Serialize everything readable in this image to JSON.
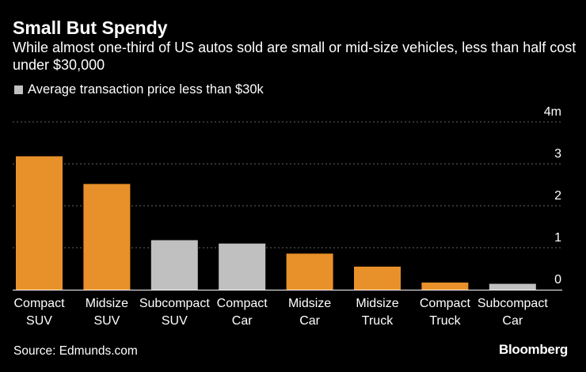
{
  "header": {
    "title": "Small But Spendy",
    "subtitle": "While almost one-third of US autos sold are small or mid-size vehicles, less than half cost under $30,000"
  },
  "legend": {
    "label": "Average transaction price less than $30k",
    "color": "#c0c0c0"
  },
  "footer": {
    "source": "Source: Edmunds.com",
    "brand": "Bloomberg"
  },
  "colors": {
    "over_30k": "#e8912a",
    "under_30k": "#c0c0c0",
    "grid": "#666666",
    "axis": "#ffffff",
    "text": "#ffffff",
    "background": "#000000"
  },
  "chart_data": {
    "type": "bar",
    "title": "Small But Spendy",
    "ylabel": "",
    "xlabel": "",
    "ylim": [
      0,
      4
    ],
    "yticks": [
      0,
      1,
      2,
      3,
      4
    ],
    "ytick_labels": [
      "0",
      "1",
      "2",
      "3",
      "4m"
    ],
    "grid": true,
    "categories": [
      [
        "Compact",
        "SUV"
      ],
      [
        "Midsize",
        "SUV"
      ],
      [
        "Subcompact",
        "SUV"
      ],
      [
        "Compact",
        "Car"
      ],
      [
        "Midsize",
        "Car"
      ],
      [
        "Midsize",
        "Truck"
      ],
      [
        "Compact",
        "Truck"
      ],
      [
        "Subcompact",
        "Car"
      ]
    ],
    "values": [
      3.18,
      2.52,
      1.18,
      1.1,
      0.86,
      0.55,
      0.17,
      0.14
    ],
    "under_30k": [
      false,
      false,
      true,
      true,
      false,
      false,
      false,
      true
    ]
  }
}
